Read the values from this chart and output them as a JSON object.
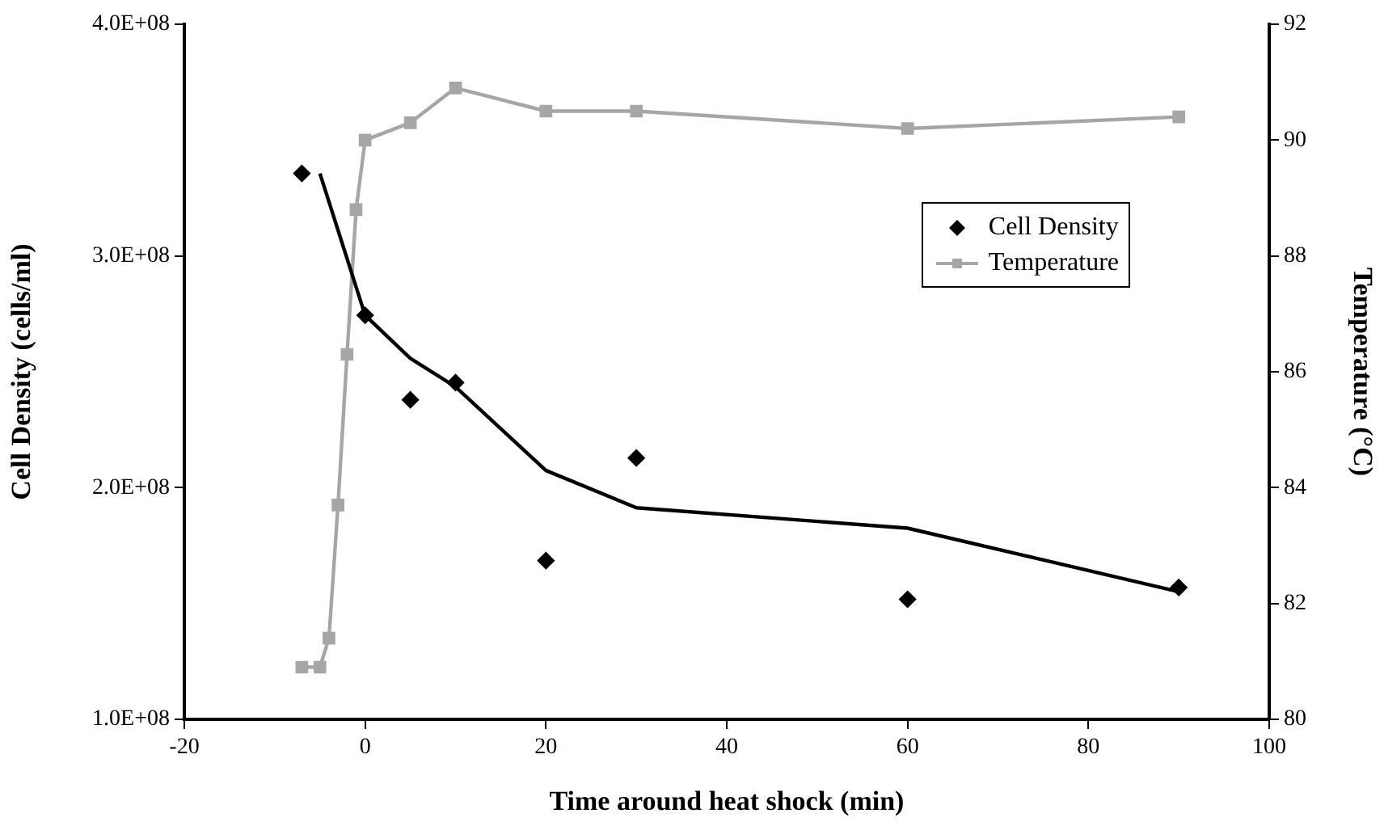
{
  "chart_data": {
    "type": "scatter",
    "xlabel": "Time around heat shock (min)",
    "ylabel": "Cell Density (cells/ml)",
    "y2label": "Temperature (°C)",
    "series": [
      {
        "name": "Cell Density",
        "type": "scatter",
        "color": "#000000",
        "marker": "diamond",
        "x": [
          -7,
          0,
          5,
          10,
          20,
          30,
          60,
          90
        ],
        "values": [
          335600000,
          274400000,
          237900000,
          245300000,
          168500000,
          212800000,
          151800000,
          156900000
        ]
      },
      {
        "type": "line",
        "color": "#000000",
        "marker": "none",
        "x": [
          -5,
          0,
          5,
          10,
          20,
          30,
          60,
          90
        ],
        "values": [
          335600000,
          274400000,
          255800000,
          243500000,
          207400000,
          191300000,
          182500000,
          155100000
        ]
      },
      {
        "name": "Temperature",
        "type": "line",
        "axis": "y2",
        "color": "#a6a6a6",
        "marker": "square",
        "x": [
          -7,
          -5,
          -4,
          -3,
          -2,
          -1,
          0,
          5,
          10,
          20,
          30,
          60,
          90
        ],
        "values": [
          80.9,
          80.9,
          81.4,
          83.7,
          86.3,
          88.8,
          90.0,
          90.3,
          90.9,
          90.5,
          90.5,
          90.2,
          90.4
        ]
      }
    ],
    "xlim": [
      -20,
      100
    ],
    "xticks": [
      -20,
      0,
      20,
      40,
      60,
      80,
      100
    ],
    "ylim": [
      100000000,
      400000000
    ],
    "yticks": [
      {
        "value": 100000000,
        "label": "1.0E+08"
      },
      {
        "value": 200000000,
        "label": "2.0E+08"
      },
      {
        "value": 300000000,
        "label": "3.0E+08"
      },
      {
        "value": 400000000,
        "label": "4.0E+08"
      }
    ],
    "y2lim": [
      80,
      92
    ],
    "y2ticks": [
      80,
      82,
      84,
      86,
      88,
      90,
      92
    ],
    "grid": false,
    "legend": "top right"
  }
}
